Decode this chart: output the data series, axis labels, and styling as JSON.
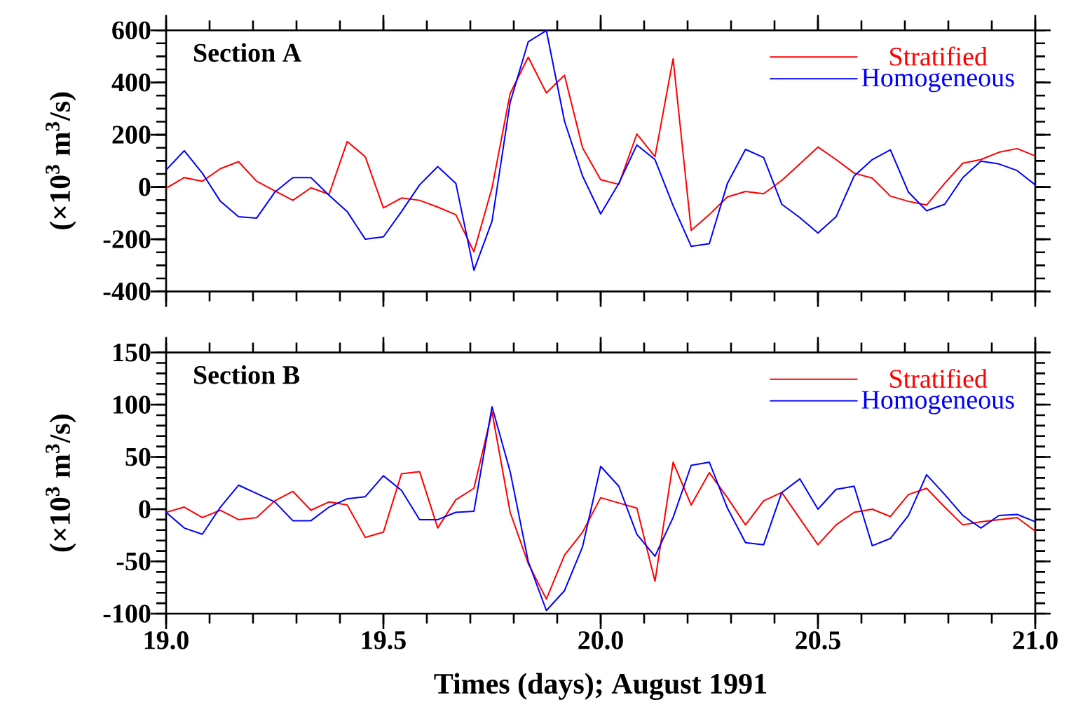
{
  "chart_data": [
    {
      "type": "line",
      "ylabel": "(×10$^{3}$ m$^{3}$/s)",
      "annotations": [
        "Section A"
      ],
      "legend": "top right",
      "tick_labels": "y",
      "x": [
        19,
        19.0417,
        19.0833,
        19.125,
        19.1667,
        19.2083,
        19.25,
        19.2917,
        19.3333,
        19.375,
        19.4167,
        19.4583,
        19.5,
        19.5417,
        19.5833,
        19.625,
        19.6667,
        19.7083,
        19.75,
        19.7917,
        19.8333,
        19.875,
        19.9167,
        19.9583,
        20,
        20.0417,
        20.0833,
        20.125,
        20.1667,
        20.2083,
        20.25,
        20.2917,
        20.3333,
        20.375,
        20.4167,
        20.4583,
        20.5,
        20.5417,
        20.5833,
        20.625,
        20.6667,
        20.7083,
        20.75,
        20.7917,
        20.8333,
        20.875,
        20.9167,
        20.9583,
        21
      ],
      "series": [
        {
          "name": "Stratified",
          "color": "#ff0000",
          "values": [
            -5,
            36,
            22,
            70,
            97,
            22,
            -15,
            -51,
            -3,
            -28,
            174,
            116,
            -80,
            -42,
            -51,
            -77,
            -106,
            -248,
            -3,
            358,
            497,
            360,
            428,
            150,
            28,
            10,
            203,
            116,
            491,
            -166,
            -106,
            -38,
            -17,
            -26,
            25,
            88,
            153,
            105,
            53,
            34,
            -35,
            -55,
            -69,
            14,
            91,
            105,
            133,
            147,
            119
          ]
        },
        {
          "name": "Homogeneous",
          "color": "#0000ff",
          "values": [
            65,
            139,
            53,
            -55,
            -114,
            -119,
            -20,
            36,
            36,
            -32,
            -94,
            -200,
            -191,
            -94,
            8,
            78,
            14,
            -319,
            -131,
            324,
            556,
            599,
            252,
            42,
            -103,
            14,
            161,
            105,
            -72,
            -227,
            -217,
            14,
            144,
            113,
            -66,
            -117,
            -176,
            -114,
            42,
            105,
            142,
            -20,
            -91,
            -66,
            36,
            99,
            88,
            63,
            8
          ]
        }
      ],
      "xlim": [
        19,
        21
      ],
      "xticks": [
        19,
        {
          "value": 19.1,
          "label": null
        },
        {
          "value": 19.2,
          "label": null
        },
        {
          "value": 19.3,
          "label": null
        },
        {
          "value": 19.4,
          "label": null
        },
        19.5,
        {
          "value": 19.6,
          "label": null
        },
        {
          "value": 19.7,
          "label": null
        },
        {
          "value": 19.8,
          "label": null
        },
        {
          "value": 19.9,
          "label": null
        },
        20,
        {
          "value": 20.1,
          "label": null
        },
        {
          "value": 20.2,
          "label": null
        },
        {
          "value": 20.3,
          "label": null
        },
        {
          "value": 20.4,
          "label": null
        },
        20.5,
        {
          "value": 20.6,
          "label": null
        },
        {
          "value": 20.7,
          "label": null
        },
        {
          "value": 20.8,
          "label": null
        },
        {
          "value": 20.9,
          "label": null
        },
        21
      ],
      "ylim": [
        -400,
        600
      ],
      "yticks": [
        -400,
        {
          "value": -350,
          "label": null
        },
        {
          "value": -300,
          "label": null
        },
        {
          "value": -250,
          "label": null
        },
        -200,
        {
          "value": -150,
          "label": null
        },
        {
          "value": -100,
          "label": null
        },
        {
          "value": -50,
          "label": null
        },
        0,
        {
          "value": 50,
          "label": null
        },
        {
          "value": 100,
          "label": null
        },
        {
          "value": 150,
          "label": null
        },
        200,
        {
          "value": 250,
          "label": null
        },
        {
          "value": 300,
          "label": null
        },
        {
          "value": 350,
          "label": null
        },
        400,
        {
          "value": 450,
          "label": null
        },
        {
          "value": 500,
          "label": null
        },
        {
          "value": 550,
          "label": null
        },
        600
      ]
    },
    {
      "type": "line",
      "xlabel": "Times (days); August 1991",
      "ylabel": "(×10$^{3}$ m$^{3}$/s)",
      "annotations": [
        "Section B"
      ],
      "legend": "top right",
      "x": [
        19,
        19.0417,
        19.0833,
        19.125,
        19.1667,
        19.2083,
        19.25,
        19.2917,
        19.3333,
        19.375,
        19.4167,
        19.4583,
        19.5,
        19.5417,
        19.5833,
        19.625,
        19.6667,
        19.7083,
        19.75,
        19.7917,
        19.8333,
        19.875,
        19.9167,
        19.9583,
        20,
        20.0417,
        20.0833,
        20.125,
        20.1667,
        20.2083,
        20.25,
        20.2917,
        20.3333,
        20.375,
        20.4167,
        20.4583,
        20.5,
        20.5417,
        20.5833,
        20.625,
        20.6667,
        20.7083,
        20.75,
        20.7917,
        20.8333,
        20.875,
        20.9167,
        20.9583,
        21
      ],
      "series": [
        {
          "name": "Stratified",
          "color": "#ff0000",
          "values": [
            -3,
            2,
            -8,
            -1,
            -10,
            -8,
            8,
            17,
            -1,
            7,
            4,
            -27,
            -22,
            34,
            36,
            -18,
            9,
            20,
            93,
            -3,
            -52,
            -86,
            -44,
            -22,
            11,
            6,
            1,
            -69,
            45,
            4,
            35,
            11,
            -15,
            8,
            16,
            -9,
            -34,
            -15,
            -3,
            0,
            -7,
            14,
            20,
            2,
            -15,
            -12,
            -10,
            -8,
            -21
          ]
        },
        {
          "name": "Homogeneous",
          "color": "#0000ff",
          "values": [
            -3,
            -18,
            -24,
            2,
            23,
            15,
            7,
            -11,
            -11,
            2,
            10,
            12,
            32,
            18,
            -10,
            -10,
            -3,
            -2,
            98,
            36,
            -50,
            -97,
            -78,
            -36,
            41,
            22,
            -24,
            -45,
            -8,
            42,
            45,
            1,
            -32,
            -34,
            16,
            29,
            0,
            19,
            22,
            -35,
            -28,
            -6,
            33,
            14,
            -6,
            -18,
            -6,
            -5,
            -12
          ]
        }
      ],
      "xlim": [
        19,
        21
      ],
      "xticks": [
        {
          "value": 19,
          "label": "19.0"
        },
        {
          "value": 19.1,
          "label": null
        },
        {
          "value": 19.2,
          "label": null
        },
        {
          "value": 19.3,
          "label": null
        },
        {
          "value": 19.4,
          "label": null
        },
        {
          "value": 19.5,
          "label": "19.5"
        },
        {
          "value": 19.6,
          "label": null
        },
        {
          "value": 19.7,
          "label": null
        },
        {
          "value": 19.8,
          "label": null
        },
        {
          "value": 19.9,
          "label": null
        },
        {
          "value": 20,
          "label": "20.0"
        },
        {
          "value": 20.1,
          "label": null
        },
        {
          "value": 20.2,
          "label": null
        },
        {
          "value": 20.3,
          "label": null
        },
        {
          "value": 20.4,
          "label": null
        },
        {
          "value": 20.5,
          "label": "20.5"
        },
        {
          "value": 20.6,
          "label": null
        },
        {
          "value": 20.7,
          "label": null
        },
        {
          "value": 20.8,
          "label": null
        },
        {
          "value": 20.9,
          "label": null
        },
        {
          "value": 21,
          "label": "21.0"
        }
      ],
      "ylim": [
        -100,
        150
      ],
      "yticks": [
        -100,
        {
          "value": -90,
          "label": null
        },
        {
          "value": -80,
          "label": null
        },
        {
          "value": -70,
          "label": null
        },
        {
          "value": -60,
          "label": null
        },
        -50,
        {
          "value": -40,
          "label": null
        },
        {
          "value": -30,
          "label": null
        },
        {
          "value": -20,
          "label": null
        },
        {
          "value": -10,
          "label": null
        },
        0,
        {
          "value": 10,
          "label": null
        },
        {
          "value": 20,
          "label": null
        },
        {
          "value": 30,
          "label": null
        },
        {
          "value": 40,
          "label": null
        },
        50,
        {
          "value": 60,
          "label": null
        },
        {
          "value": 70,
          "label": null
        },
        {
          "value": 80,
          "label": null
        },
        {
          "value": 90,
          "label": null
        },
        100,
        {
          "value": 110,
          "label": null
        },
        {
          "value": 120,
          "label": null
        },
        {
          "value": 130,
          "label": null
        },
        {
          "value": 140,
          "label": null
        },
        150
      ]
    }
  ]
}
